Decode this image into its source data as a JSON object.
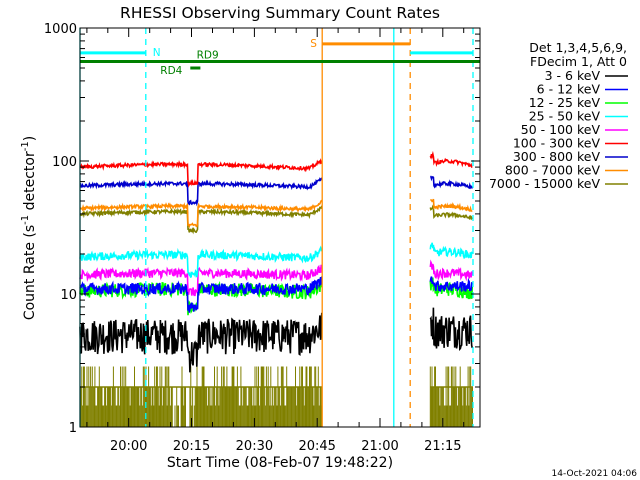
{
  "chart_data": {
    "type": "line",
    "title": "RHESSI Observing Summary Count Rates",
    "xlabel": "Start Time (08-Feb-07 19:48:22)",
    "ylabel": "Count Rate (s",
    "ylabel_sup": "-1",
    "ylabel_tail": " detector",
    "ylabel_end": ")",
    "yscale": "log",
    "ylim": [
      1,
      1000
    ],
    "xlim": [
      19.806,
      21.398
    ],
    "x_unit": "hours UT",
    "xticks": [
      {
        "x": 20.0,
        "label": "20:00"
      },
      {
        "x": 20.25,
        "label": "20:15"
      },
      {
        "x": 20.5,
        "label": "20:30"
      },
      {
        "x": 20.75,
        "label": "20:45"
      },
      {
        "x": 21.0,
        "label": "21:00"
      },
      {
        "x": 21.25,
        "label": "21:15"
      }
    ],
    "yticks": [
      {
        "y": 1,
        "label": "1"
      },
      {
        "y": 10,
        "label": "10"
      },
      {
        "y": 100,
        "label": "100"
      },
      {
        "y": 1000,
        "label": "1000"
      }
    ],
    "legend": {
      "placement": "right",
      "header": [
        "Det 1,3,4,5,6,9,",
        "FDecim 1, Att 0"
      ]
    },
    "series": [
      {
        "name": "3 - 6 keV",
        "color": "#000000",
        "level_a": 5.0,
        "level_b": 5.5,
        "noise": 0.3,
        "wobble": 0.0
      },
      {
        "name": "6 - 12 keV",
        "color": "#0000ff",
        "level_a": 11.0,
        "level_b": 11.5,
        "noise": 0.1,
        "wobble": 0.0
      },
      {
        "name": "12 - 25 keV",
        "color": "#00ff00",
        "level_a": 10.5,
        "level_b": 10.5,
        "noise": 0.12,
        "wobble": 0.04
      },
      {
        "name": "25 - 50 keV",
        "color": "#00ffff",
        "level_a": 19.0,
        "level_b": 20.0,
        "noise": 0.07,
        "wobble": 0.04
      },
      {
        "name": "50 - 100 keV",
        "color": "#ff00ff",
        "level_a": 14.0,
        "level_b": 14.0,
        "noise": 0.08,
        "wobble": 0.03
      },
      {
        "name": "100 - 300 keV",
        "color": "#ff0000",
        "level_a": 90.0,
        "level_b": 95.0,
        "noise": 0.03,
        "wobble": 0.05
      },
      {
        "name": "300 - 800 keV",
        "color": "#0000cc",
        "level_a": 65.0,
        "level_b": 65.0,
        "noise": 0.03,
        "wobble": 0.04
      },
      {
        "name": "800 - 7000 keV",
        "color": "#ff8c00",
        "level_a": 44.0,
        "level_b": 44.0,
        "noise": 0.03,
        "wobble": 0.04
      },
      {
        "name": "7000 - 15000 keV",
        "color": "#808000",
        "level_a": 40.0,
        "level_b": 38.0,
        "noise": 0.03,
        "wobble": 0.04
      }
    ],
    "olive_spikes_color": "#808000",
    "data_segments": [
      [
        19.806,
        20.77
      ],
      [
        21.2,
        21.37
      ]
    ],
    "shading_dip": [
      20.235,
      20.275
    ],
    "night_markers": [
      {
        "x": 19.806,
        "style": "solid",
        "color": "#00ffff"
      },
      {
        "x": 20.068,
        "style": "dashed",
        "color": "#00ffff"
      },
      {
        "x": 21.055,
        "style": "solid",
        "color": "#00ffff"
      },
      {
        "x": 21.37,
        "style": "dashed",
        "color": "#00ffff"
      }
    ],
    "saa_markers": [
      {
        "x": 20.77,
        "style": "solid",
        "color": "#ff8c00"
      },
      {
        "x": 21.12,
        "style": "dashed",
        "color": "#ff8c00"
      }
    ],
    "flag_bars": [
      {
        "label": "N",
        "color": "#00ffff",
        "y": 650,
        "x0": 19.806,
        "x1": 20.068
      },
      {
        "label": "",
        "color": "#00ffff",
        "y": 650,
        "x0": 21.12,
        "x1": 21.37
      },
      {
        "label": "S",
        "color": "#ff8c00",
        "y": 760,
        "x0": 20.77,
        "x1": 21.12
      },
      {
        "label": "RD9",
        "color": "#008000",
        "y": 560,
        "x0": 19.806,
        "x1": 21.398
      },
      {
        "label": "RD4",
        "color": "#008000",
        "y": 500,
        "x0": 20.245,
        "x1": 20.285
      }
    ],
    "footer_date": "14-Oct-2021 04:06"
  }
}
